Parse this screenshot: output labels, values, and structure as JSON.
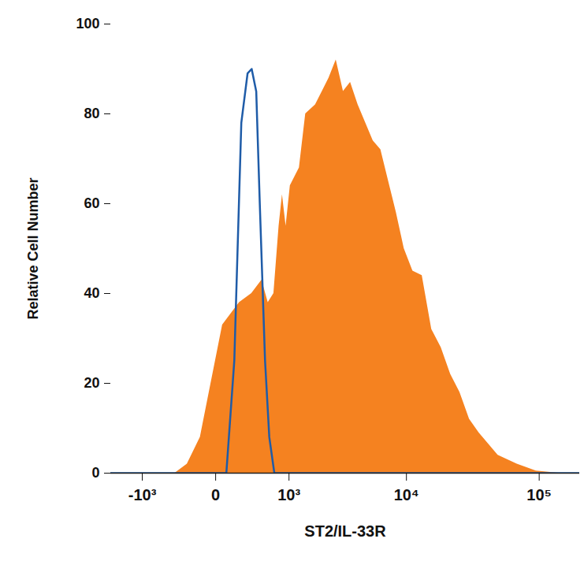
{
  "chart_data": {
    "type": "line",
    "x_label": "ST2/IL-33R",
    "y_label": "Relative Cell Number",
    "log": "x",
    "xlim": [
      -2000,
      200000
    ],
    "xticks": [
      {
        "value": -1000,
        "label": "-10³"
      },
      {
        "value": 0,
        "label": "0"
      },
      {
        "value": 1000,
        "label": "10³"
      },
      {
        "value": 10000,
        "label": "10⁴"
      },
      {
        "value": 100000,
        "label": "10⁵"
      }
    ],
    "ylim": [
      0,
      100
    ],
    "yticks": [
      0,
      20,
      40,
      60,
      80,
      100
    ],
    "series": [
      {
        "type": "area",
        "color": "#f58220",
        "x": [
          -400,
          -250,
          -120,
          50,
          200,
          340,
          480,
          580,
          680,
          780,
          850,
          930,
          1030,
          1270,
          1460,
          1800,
          2070,
          2370,
          2730,
          3140,
          3600,
          4150,
          4780,
          5490,
          6310,
          7260,
          8350,
          9600,
          11200,
          13200,
          15600,
          18400,
          21700,
          25500,
          30100,
          35500,
          49300,
          68500,
          95000,
          140000
        ],
        "values": [
          0,
          2,
          8,
          33,
          38,
          40,
          43,
          38,
          40,
          55,
          62,
          55,
          64,
          68,
          80,
          82,
          85,
          88,
          92,
          85,
          87,
          82,
          78,
          74,
          72,
          65,
          58,
          50,
          45,
          44,
          32,
          28,
          22,
          18,
          12,
          9,
          4,
          2,
          0.5,
          0
        ]
      },
      {
        "type": "line",
        "color": "#1f5ca8",
        "x": [
          -2000,
          80,
          150,
          220,
          290,
          340,
          400,
          450,
          530,
          600,
          690,
          200000
        ],
        "values": [
          0,
          0,
          25,
          78,
          89,
          90,
          85,
          60,
          25,
          8,
          0,
          0
        ]
      }
    ]
  }
}
